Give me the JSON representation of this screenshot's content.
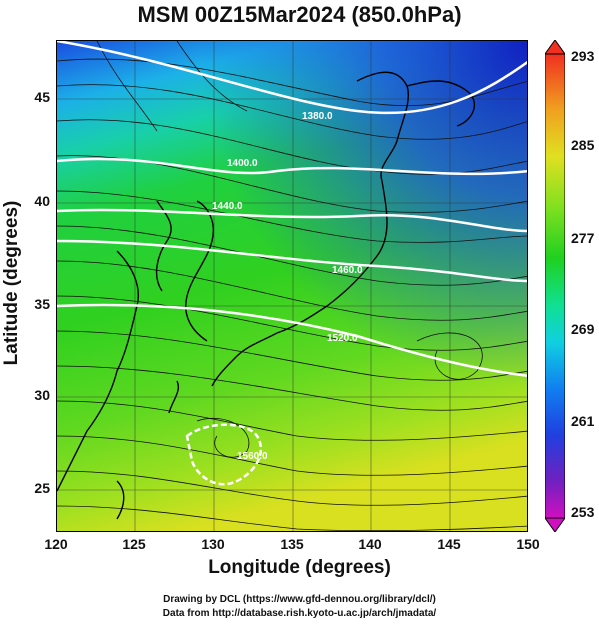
{
  "title": "MSM 00Z15Mar2024 (850.0hPa)",
  "xlabel": "Longitude (degrees)",
  "ylabel": "Latitude  (degrees)",
  "x_ticks": [
    "120",
    "125",
    "130",
    "135",
    "140",
    "145",
    "150"
  ],
  "y_ticks": [
    "45",
    "40",
    "35",
    "30",
    "25"
  ],
  "colorbar_ticks": [
    "293",
    "285",
    "277",
    "269",
    "261",
    "253"
  ],
  "contour_labels": [
    "1380.0",
    "1400.0",
    "1440.0",
    "1460.0",
    "1520.0",
    "1560.0"
  ],
  "credits": {
    "line1": "Drawing by DCL (https://www.gfd-dennou.org/library/dcl/)",
    "line2": "Data from http://database.rish.kyoto-u.ac.jp/arch/jmadata/"
  },
  "map": {
    "lon_range": [
      120,
      150
    ],
    "lat_range": [
      22.5,
      47.5
    ],
    "field": "temperature (K) shaded, geopotential height contours, streamlines",
    "colorscale": [
      "#d010c0",
      "#7020c0",
      "#2040e0",
      "#1080f0",
      "#10d0e0",
      "#10e090",
      "#20d020",
      "#80e020",
      "#e0e020",
      "#f0a020",
      "#f03020"
    ]
  }
}
